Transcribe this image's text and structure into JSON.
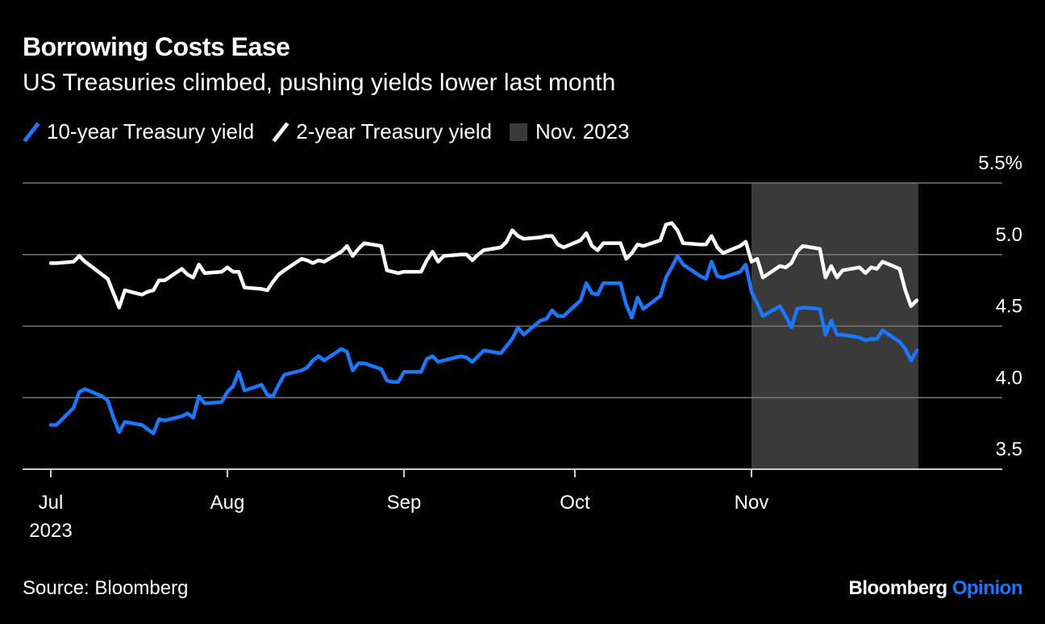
{
  "title": "Borrowing Costs Ease",
  "subtitle": "US Treasuries climbed, pushing yields lower last month",
  "legend": {
    "ten_year": "10-year Treasury yield",
    "two_year": "2-year Treasury yield",
    "highlight": "Nov. 2023"
  },
  "source": "Source: Bloomberg",
  "brand": {
    "name": "Bloomberg",
    "suffix": "Opinion"
  },
  "colors": {
    "ten_year": "#1a78ff",
    "two_year": "#ffffff",
    "highlight": "#3a3a3a",
    "grid": "#777777",
    "background": "#000000"
  },
  "chart_data": {
    "type": "line",
    "title": "Borrowing Costs Ease",
    "subtitle": "US Treasuries climbed, pushing yields lower last month",
    "ylim": [
      3.5,
      5.5
    ],
    "y_ticks": [
      "5.5%",
      "5.0",
      "4.5",
      "4.0",
      "3.5"
    ],
    "y_tick_values": [
      5.5,
      5.0,
      4.5,
      4.0,
      3.5
    ],
    "x_ticks": [
      {
        "label": "Jul",
        "sublabel": "2023",
        "date": "2023-07-01"
      },
      {
        "label": "Aug",
        "sublabel": "",
        "date": "2023-08-01"
      },
      {
        "label": "Sep",
        "sublabel": "",
        "date": "2023-09-01"
      },
      {
        "label": "Oct",
        "sublabel": "",
        "date": "2023-10-01"
      },
      {
        "label": "Nov",
        "sublabel": "",
        "date": "2023-11-01"
      }
    ],
    "xlim": [
      "2023-07-01",
      "2023-12-06"
    ],
    "highlight_range": [
      "2023-11-01",
      "2023-11-30"
    ],
    "grid": true,
    "legend_position": "top-left",
    "series": [
      {
        "name": "10-year Treasury yield",
        "color": "#1a78ff",
        "points": [
          [
            "2023-07-01",
            3.81
          ],
          [
            "2023-07-02",
            3.81
          ],
          [
            "2023-07-05",
            3.93
          ],
          [
            "2023-07-06",
            4.04
          ],
          [
            "2023-07-07",
            4.06
          ],
          [
            "2023-07-10",
            4.01
          ],
          [
            "2023-07-11",
            3.98
          ],
          [
            "2023-07-12",
            3.86
          ],
          [
            "2023-07-13",
            3.76
          ],
          [
            "2023-07-14",
            3.83
          ],
          [
            "2023-07-17",
            3.81
          ],
          [
            "2023-07-18",
            3.78
          ],
          [
            "2023-07-19",
            3.75
          ],
          [
            "2023-07-20",
            3.85
          ],
          [
            "2023-07-21",
            3.84
          ],
          [
            "2023-07-24",
            3.87
          ],
          [
            "2023-07-25",
            3.89
          ],
          [
            "2023-07-26",
            3.86
          ],
          [
            "2023-07-27",
            4.01
          ],
          [
            "2023-07-28",
            3.96
          ],
          [
            "2023-07-31",
            3.97
          ],
          [
            "2023-08-01",
            4.04
          ],
          [
            "2023-08-02",
            4.08
          ],
          [
            "2023-08-03",
            4.18
          ],
          [
            "2023-08-04",
            4.05
          ],
          [
            "2023-08-07",
            4.09
          ],
          [
            "2023-08-08",
            4.02
          ],
          [
            "2023-08-09",
            4.01
          ],
          [
            "2023-08-10",
            4.09
          ],
          [
            "2023-08-11",
            4.16
          ],
          [
            "2023-08-14",
            4.19
          ],
          [
            "2023-08-15",
            4.21
          ],
          [
            "2023-08-16",
            4.26
          ],
          [
            "2023-08-17",
            4.29
          ],
          [
            "2023-08-18",
            4.26
          ],
          [
            "2023-08-21",
            4.34
          ],
          [
            "2023-08-22",
            4.32
          ],
          [
            "2023-08-23",
            4.19
          ],
          [
            "2023-08-24",
            4.24
          ],
          [
            "2023-08-25",
            4.24
          ],
          [
            "2023-08-28",
            4.2
          ],
          [
            "2023-08-29",
            4.12
          ],
          [
            "2023-08-30",
            4.11
          ],
          [
            "2023-08-31",
            4.11
          ],
          [
            "2023-09-01",
            4.18
          ],
          [
            "2023-09-04",
            4.18
          ],
          [
            "2023-09-05",
            4.27
          ],
          [
            "2023-09-06",
            4.29
          ],
          [
            "2023-09-07",
            4.25
          ],
          [
            "2023-09-08",
            4.26
          ],
          [
            "2023-09-11",
            4.29
          ],
          [
            "2023-09-12",
            4.28
          ],
          [
            "2023-09-13",
            4.25
          ],
          [
            "2023-09-14",
            4.29
          ],
          [
            "2023-09-15",
            4.33
          ],
          [
            "2023-09-18",
            4.31
          ],
          [
            "2023-09-19",
            4.36
          ],
          [
            "2023-09-20",
            4.41
          ],
          [
            "2023-09-21",
            4.49
          ],
          [
            "2023-09-22",
            4.44
          ],
          [
            "2023-09-25",
            4.54
          ],
          [
            "2023-09-26",
            4.55
          ],
          [
            "2023-09-27",
            4.61
          ],
          [
            "2023-09-28",
            4.57
          ],
          [
            "2023-09-29",
            4.57
          ],
          [
            "2023-10-02",
            4.68
          ],
          [
            "2023-10-03",
            4.8
          ],
          [
            "2023-10-04",
            4.73
          ],
          [
            "2023-10-05",
            4.72
          ],
          [
            "2023-10-06",
            4.8
          ],
          [
            "2023-10-09",
            4.8
          ],
          [
            "2023-10-10",
            4.65
          ],
          [
            "2023-10-11",
            4.56
          ],
          [
            "2023-10-12",
            4.7
          ],
          [
            "2023-10-13",
            4.62
          ],
          [
            "2023-10-16",
            4.71
          ],
          [
            "2023-10-17",
            4.84
          ],
          [
            "2023-10-18",
            4.91
          ],
          [
            "2023-10-19",
            4.99
          ],
          [
            "2023-10-20",
            4.93
          ],
          [
            "2023-10-23",
            4.85
          ],
          [
            "2023-10-24",
            4.83
          ],
          [
            "2023-10-25",
            4.95
          ],
          [
            "2023-10-26",
            4.85
          ],
          [
            "2023-10-27",
            4.84
          ],
          [
            "2023-10-30",
            4.88
          ],
          [
            "2023-10-31",
            4.93
          ],
          [
            "2023-11-01",
            4.74
          ],
          [
            "2023-11-02",
            4.66
          ],
          [
            "2023-11-03",
            4.57
          ],
          [
            "2023-11-06",
            4.64
          ],
          [
            "2023-11-07",
            4.57
          ],
          [
            "2023-11-08",
            4.49
          ],
          [
            "2023-11-09",
            4.62
          ],
          [
            "2023-11-10",
            4.63
          ],
          [
            "2023-11-13",
            4.62
          ],
          [
            "2023-11-14",
            4.44
          ],
          [
            "2023-11-15",
            4.54
          ],
          [
            "2023-11-16",
            4.44
          ],
          [
            "2023-11-17",
            4.44
          ],
          [
            "2023-11-20",
            4.42
          ],
          [
            "2023-11-21",
            4.4
          ],
          [
            "2023-11-22",
            4.41
          ],
          [
            "2023-11-23",
            4.41
          ],
          [
            "2023-11-24",
            4.47
          ],
          [
            "2023-11-27",
            4.39
          ],
          [
            "2023-11-28",
            4.34
          ],
          [
            "2023-11-29",
            4.26
          ],
          [
            "2023-11-30",
            4.33
          ]
        ]
      },
      {
        "name": "2-year Treasury yield",
        "color": "#ffffff",
        "points": [
          [
            "2023-07-01",
            4.94
          ],
          [
            "2023-07-02",
            4.94
          ],
          [
            "2023-07-05",
            4.95
          ],
          [
            "2023-07-06",
            4.99
          ],
          [
            "2023-07-07",
            4.95
          ],
          [
            "2023-07-10",
            4.86
          ],
          [
            "2023-07-11",
            4.83
          ],
          [
            "2023-07-12",
            4.73
          ],
          [
            "2023-07-13",
            4.63
          ],
          [
            "2023-07-14",
            4.75
          ],
          [
            "2023-07-17",
            4.72
          ],
          [
            "2023-07-18",
            4.74
          ],
          [
            "2023-07-19",
            4.75
          ],
          [
            "2023-07-20",
            4.82
          ],
          [
            "2023-07-21",
            4.82
          ],
          [
            "2023-07-24",
            4.9
          ],
          [
            "2023-07-25",
            4.86
          ],
          [
            "2023-07-26",
            4.84
          ],
          [
            "2023-07-27",
            4.93
          ],
          [
            "2023-07-28",
            4.87
          ],
          [
            "2023-07-31",
            4.88
          ],
          [
            "2023-08-01",
            4.91
          ],
          [
            "2023-08-02",
            4.88
          ],
          [
            "2023-08-03",
            4.88
          ],
          [
            "2023-08-04",
            4.77
          ],
          [
            "2023-08-07",
            4.76
          ],
          [
            "2023-08-08",
            4.75
          ],
          [
            "2023-08-09",
            4.81
          ],
          [
            "2023-08-10",
            4.86
          ],
          [
            "2023-08-11",
            4.89
          ],
          [
            "2023-08-14",
            4.97
          ],
          [
            "2023-08-15",
            4.96
          ],
          [
            "2023-08-16",
            4.94
          ],
          [
            "2023-08-17",
            4.96
          ],
          [
            "2023-08-18",
            4.95
          ],
          [
            "2023-08-21",
            5.02
          ],
          [
            "2023-08-22",
            5.06
          ],
          [
            "2023-08-23",
            4.99
          ],
          [
            "2023-08-24",
            5.04
          ],
          [
            "2023-08-25",
            5.08
          ],
          [
            "2023-08-28",
            5.06
          ],
          [
            "2023-08-29",
            4.89
          ],
          [
            "2023-08-30",
            4.88
          ],
          [
            "2023-08-31",
            4.87
          ],
          [
            "2023-09-01",
            4.88
          ],
          [
            "2023-09-04",
            4.88
          ],
          [
            "2023-09-05",
            4.96
          ],
          [
            "2023-09-06",
            5.02
          ],
          [
            "2023-09-07",
            4.95
          ],
          [
            "2023-09-08",
            4.99
          ],
          [
            "2023-09-11",
            5.0
          ],
          [
            "2023-09-12",
            5.0
          ],
          [
            "2023-09-13",
            4.96
          ],
          [
            "2023-09-14",
            5.0
          ],
          [
            "2023-09-15",
            5.03
          ],
          [
            "2023-09-18",
            5.05
          ],
          [
            "2023-09-19",
            5.09
          ],
          [
            "2023-09-20",
            5.17
          ],
          [
            "2023-09-21",
            5.13
          ],
          [
            "2023-09-22",
            5.11
          ],
          [
            "2023-09-25",
            5.12
          ],
          [
            "2023-09-26",
            5.13
          ],
          [
            "2023-09-27",
            5.13
          ],
          [
            "2023-09-28",
            5.07
          ],
          [
            "2023-09-29",
            5.05
          ],
          [
            "2023-10-02",
            5.1
          ],
          [
            "2023-10-03",
            5.15
          ],
          [
            "2023-10-04",
            5.06
          ],
          [
            "2023-10-05",
            5.03
          ],
          [
            "2023-10-06",
            5.08
          ],
          [
            "2023-10-09",
            5.08
          ],
          [
            "2023-10-10",
            4.97
          ],
          [
            "2023-10-11",
            5.01
          ],
          [
            "2023-10-12",
            5.07
          ],
          [
            "2023-10-13",
            5.06
          ],
          [
            "2023-10-16",
            5.1
          ],
          [
            "2023-10-17",
            5.21
          ],
          [
            "2023-10-18",
            5.22
          ],
          [
            "2023-10-19",
            5.17
          ],
          [
            "2023-10-20",
            5.08
          ],
          [
            "2023-10-23",
            5.07
          ],
          [
            "2023-10-24",
            5.07
          ],
          [
            "2023-10-25",
            5.13
          ],
          [
            "2023-10-26",
            5.05
          ],
          [
            "2023-10-27",
            5.01
          ],
          [
            "2023-10-30",
            5.06
          ],
          [
            "2023-10-31",
            5.09
          ],
          [
            "2023-11-01",
            4.95
          ],
          [
            "2023-11-02",
            4.97
          ],
          [
            "2023-11-03",
            4.84
          ],
          [
            "2023-11-06",
            4.92
          ],
          [
            "2023-11-07",
            4.91
          ],
          [
            "2023-11-08",
            4.94
          ],
          [
            "2023-11-09",
            5.02
          ],
          [
            "2023-11-10",
            5.06
          ],
          [
            "2023-11-13",
            5.04
          ],
          [
            "2023-11-14",
            4.84
          ],
          [
            "2023-11-15",
            4.92
          ],
          [
            "2023-11-16",
            4.84
          ],
          [
            "2023-11-17",
            4.89
          ],
          [
            "2023-11-20",
            4.91
          ],
          [
            "2023-11-21",
            4.87
          ],
          [
            "2023-11-22",
            4.91
          ],
          [
            "2023-11-23",
            4.9
          ],
          [
            "2023-11-24",
            4.95
          ],
          [
            "2023-11-27",
            4.9
          ],
          [
            "2023-11-28",
            4.75
          ],
          [
            "2023-11-29",
            4.64
          ],
          [
            "2023-11-30",
            4.68
          ]
        ]
      }
    ]
  }
}
